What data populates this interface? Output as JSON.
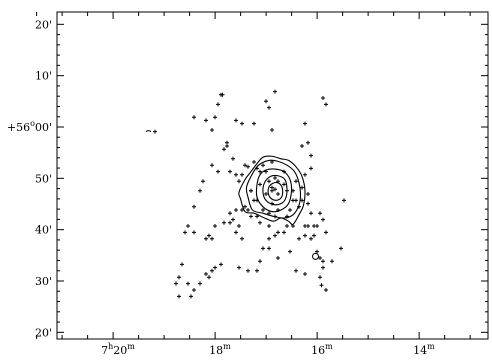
{
  "chart_data": {
    "type": "scatter",
    "title": "",
    "xlabel": "",
    "ylabel": "",
    "x_axis": {
      "reversed": true,
      "major_ticks": [
        {
          "hours": 7,
          "minutes": 20,
          "label_main": "7",
          "label_h": "h",
          "label_num": "20",
          "label_m": "m"
        },
        {
          "hours": 7,
          "minutes": 18,
          "label_main": "",
          "label_h": "",
          "label_num": "18",
          "label_m": "m"
        },
        {
          "hours": 7,
          "minutes": 16,
          "label_main": "",
          "label_h": "",
          "label_num": "16",
          "label_m": "m"
        },
        {
          "hours": 7,
          "minutes": 14,
          "label_main": "",
          "label_h": "",
          "label_num": "14",
          "label_m": "m"
        }
      ],
      "minor_ticks_minutes": [
        21.5,
        21,
        20.5,
        19.5,
        19,
        18.5,
        17.5,
        17,
        16.5,
        15.5,
        15,
        14.5,
        13.5,
        13
      ]
    },
    "y_axis": {
      "major_ticks": [
        {
          "value": 20,
          "label": "20'"
        },
        {
          "value": 10,
          "label": "10'"
        },
        {
          "value": 0,
          "label": "+56°00'"
        },
        {
          "value": -10,
          "label": "50'"
        },
        {
          "value": -20,
          "label": "40'"
        },
        {
          "value": -30,
          "label": "30'"
        },
        {
          "value": -40,
          "label": "20'"
        }
      ],
      "label_parts": {
        "plus56": "+56",
        "deg": "o",
        "rest": "00'"
      }
    },
    "contours": [
      {
        "level": 1,
        "points": [
          [
            -7,
            -0.5
          ],
          [
            -5,
            1.5
          ],
          [
            -2,
            1.8
          ],
          [
            1,
            1.0
          ],
          [
            3.5,
            0.5
          ],
          [
            6,
            -1.5
          ],
          [
            8,
            -4.5
          ],
          [
            9,
            -9
          ],
          [
            8.5,
            -13.5
          ],
          [
            7,
            -16.5
          ],
          [
            5,
            -19.5
          ],
          [
            3.5,
            -18.5
          ],
          [
            1,
            -17.5
          ],
          [
            -1.5,
            -18.5
          ],
          [
            -4.5,
            -17.5
          ],
          [
            -8,
            -16
          ],
          [
            -11,
            -15.5
          ],
          [
            -12.5,
            -11.5
          ],
          [
            -13,
            -9.5
          ],
          [
            -11,
            -5.5
          ],
          [
            -9,
            -3
          ]
        ]
      },
      {
        "level": 2,
        "points": [
          [
            -6.5,
            -1
          ],
          [
            -3,
            0.5
          ],
          [
            0,
            0.2
          ],
          [
            3,
            -1
          ],
          [
            5.5,
            -3
          ],
          [
            7,
            -6.5
          ],
          [
            7.5,
            -10
          ],
          [
            7,
            -13.5
          ],
          [
            5,
            -16.5
          ],
          [
            2,
            -17.5
          ],
          [
            -1.5,
            -17
          ],
          [
            -5,
            -16
          ],
          [
            -8.5,
            -15
          ],
          [
            -10,
            -11
          ],
          [
            -10.5,
            -8
          ],
          [
            -9,
            -4.5
          ]
        ]
      },
      {
        "level": 3,
        "points": [
          [
            -4,
            -2.5
          ],
          [
            -1,
            -2.2
          ],
          [
            2,
            -3
          ],
          [
            4,
            -5.5
          ],
          [
            4.5,
            -9
          ],
          [
            3.5,
            -13
          ],
          [
            1,
            -15
          ],
          [
            -2,
            -15.5
          ],
          [
            -5,
            -14
          ],
          [
            -7,
            -11
          ],
          [
            -7,
            -7
          ],
          [
            -6,
            -4
          ]
        ]
      },
      {
        "level": 4,
        "points": [
          [
            -2.5,
            -4.5
          ],
          [
            0,
            -4.3
          ],
          [
            2.3,
            -5.5
          ],
          [
            3,
            -8.5
          ],
          [
            2.5,
            -11.5
          ],
          [
            1,
            -13
          ],
          [
            -1.5,
            -13.3
          ],
          [
            -4,
            -12
          ],
          [
            -5,
            -9.5
          ],
          [
            -4.5,
            -6.5
          ]
        ]
      },
      {
        "level": 5,
        "points": [
          [
            -2,
            -6.8
          ],
          [
            0,
            -6.5
          ],
          [
            1.4,
            -8
          ],
          [
            1.4,
            -10.5
          ],
          [
            0.2,
            -11.8
          ],
          [
            -1.6,
            -11.8
          ],
          [
            -3,
            -10.5
          ],
          [
            -3.2,
            -8.3
          ]
        ]
      }
    ],
    "points": [
      [
        -41,
        9.5
      ],
      [
        -28,
        14
      ],
      [
        -19,
        21
      ],
      [
        -18.5,
        21
      ],
      [
        -20,
        18
      ],
      [
        -14,
        13
      ],
      [
        -22,
        10
      ],
      [
        -17,
        5
      ],
      [
        -17,
        6
      ],
      [
        -18,
        4
      ],
      [
        -21,
        14
      ],
      [
        -24,
        13
      ],
      [
        -12,
        12
      ],
      [
        -9,
        -9
      ],
      [
        -8,
        -12
      ],
      [
        -7,
        -12
      ],
      [
        -11,
        -1
      ],
      [
        -8,
        0
      ],
      [
        -10,
        -1.5
      ],
      [
        -12,
        -4
      ],
      [
        -13,
        -6
      ],
      [
        -5,
        -1
      ],
      [
        -7,
        -2
      ],
      [
        -6,
        -3
      ],
      [
        -4,
        -3
      ],
      [
        -3,
        -6
      ],
      [
        -2,
        -8
      ],
      [
        -1,
        -8.5
      ],
      [
        -2,
        -9
      ],
      [
        0,
        -10
      ],
      [
        0,
        -6
      ],
      [
        2,
        -7
      ],
      [
        3,
        -9
      ],
      [
        5,
        -12
      ],
      [
        4,
        -15
      ],
      [
        3,
        -17
      ],
      [
        -1,
        -17
      ],
      [
        -3,
        -16
      ],
      [
        -5,
        -15
      ],
      [
        -7,
        -17
      ],
      [
        -9,
        -17
      ],
      [
        -15,
        -18
      ],
      [
        -16,
        -19
      ],
      [
        -18,
        -19
      ],
      [
        -13,
        -20
      ],
      [
        -12,
        -24
      ],
      [
        -14,
        -22
      ],
      [
        -6,
        -19
      ],
      [
        -3,
        -24
      ],
      [
        -1,
        -23
      ],
      [
        0,
        -22
      ],
      [
        2,
        -22
      ],
      [
        5,
        -20
      ],
      [
        9,
        -20
      ],
      [
        9,
        -23
      ],
      [
        11,
        -24
      ],
      [
        12,
        -23
      ],
      [
        13,
        -28
      ],
      [
        14,
        -30
      ],
      [
        14,
        -36
      ],
      [
        14.5,
        -38.5
      ],
      [
        16,
        -40
      ],
      [
        18,
        -31
      ],
      [
        21,
        -27
      ],
      [
        -19,
        -32
      ],
      [
        -21,
        -33
      ],
      [
        -22,
        -34
      ],
      [
        -23,
        -36
      ],
      [
        -24,
        -35
      ],
      [
        -26,
        -38
      ],
      [
        -28,
        -40
      ],
      [
        -29,
        -42
      ],
      [
        -30,
        -38
      ],
      [
        -32,
        -32
      ],
      [
        -33,
        -36
      ],
      [
        -33,
        -42
      ],
      [
        -34,
        -38
      ],
      [
        -28,
        -22
      ],
      [
        -23,
        -23
      ],
      [
        -24,
        -24
      ],
      [
        -30,
        -20
      ],
      [
        -31,
        -22
      ],
      [
        -28,
        -14
      ],
      [
        -26,
        -9
      ],
      [
        -25,
        -6
      ],
      [
        -22,
        -1
      ],
      [
        -20,
        -3
      ],
      [
        -16,
        -3
      ],
      [
        -15,
        1
      ],
      [
        -14,
        -4
      ],
      [
        -9,
        -9
      ],
      [
        -2,
        -13
      ],
      [
        0,
        -15
      ],
      [
        8,
        -8
      ],
      [
        10,
        -10
      ],
      [
        10,
        -13
      ],
      [
        11,
        -16
      ],
      [
        12,
        -20
      ],
      [
        9,
        -4
      ],
      [
        11,
        -2
      ],
      [
        8,
        5
      ],
      [
        10,
        6
      ],
      [
        11,
        2
      ],
      [
        9,
        12
      ],
      [
        15,
        20
      ],
      [
        16,
        18
      ],
      [
        15,
        -31
      ],
      [
        15,
        -33
      ],
      [
        9,
        -35
      ],
      [
        6,
        -34
      ],
      [
        0,
        -30
      ],
      [
        -3,
        -27
      ],
      [
        -7,
        -34
      ],
      [
        -10,
        -34
      ],
      [
        -13,
        -33
      ],
      [
        -4,
        19
      ],
      [
        -3,
        17
      ],
      [
        -1,
        22
      ],
      [
        -8,
        12
      ],
      [
        -2,
        0
      ],
      [
        -2,
        10
      ],
      [
        4,
        -28
      ],
      [
        -6,
        -31
      ],
      [
        -5,
        -27
      ],
      [
        -22,
        -24
      ],
      [
        -21,
        -20
      ],
      [
        -12,
        -15
      ],
      [
        -11,
        -14
      ],
      [
        -6,
        -7
      ],
      [
        -4,
        -10
      ],
      [
        -1,
        -5
      ],
      [
        2,
        -3
      ],
      [
        5,
        -9
      ],
      [
        6,
        -12
      ],
      [
        7,
        -14
      ],
      [
        8,
        -12
      ],
      [
        6,
        -6
      ],
      [
        10,
        -20
      ],
      [
        13,
        -20
      ],
      [
        22,
        -12
      ],
      [
        14,
        -16
      ],
      [
        15,
        -18
      ],
      [
        16,
        -22
      ],
      [
        -16,
        -16
      ],
      [
        -14,
        -15
      ],
      [
        -10,
        -15
      ],
      [
        -3,
        -20
      ],
      [
        3,
        -20
      ],
      [
        7,
        -24
      ]
    ],
    "open_circle": [
      12.5,
      -29.5
    ],
    "small_mark": [
      -43,
      9.5
    ],
    "xlim_minutes": [
      21.1,
      12.65
    ],
    "ylim": [
      -41.3,
      22.4
    ]
  }
}
